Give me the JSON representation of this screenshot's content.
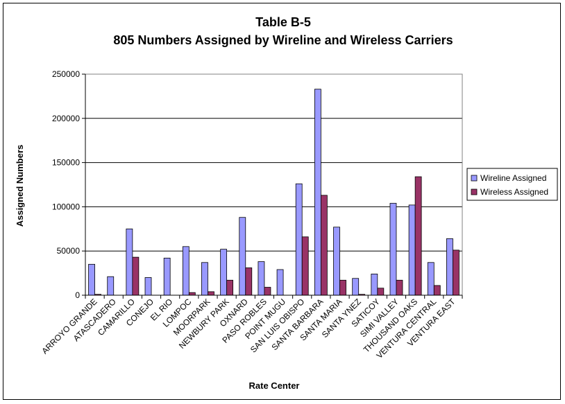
{
  "chart_data": {
    "type": "bar",
    "title": [
      "Table B-5",
      "805 Numbers Assigned by Wireline and Wireless Carriers"
    ],
    "xlabel": "Rate Center",
    "ylabel": "Assigned Numbers",
    "ylim": [
      0,
      250000
    ],
    "yticks": [
      0,
      50000,
      100000,
      150000,
      200000,
      250000
    ],
    "ytick_labels": [
      "0",
      "50000",
      "100000",
      "150000",
      "200000",
      "250000"
    ],
    "grid": true,
    "legend_position": "right",
    "categories": [
      "ARROYO GRANDE",
      "ATASCADERO",
      "CAMARILLO",
      "CONEJO",
      "EL RIO",
      "LOMPOC",
      "MOORPARK",
      "NEWBURY PARK",
      "OXNARD",
      "PASO ROBLES",
      "POINT MUGU",
      "SAN LUIS OBISPO",
      "SANTA BARBARA",
      "SANTA MARIA",
      "SANTA YNEZ",
      "SATICOY",
      "SIMI VALLEY",
      "THOUSAND OAKS",
      "VENTURA CENTRAL",
      "VENTURA EAST"
    ],
    "series": [
      {
        "name": "Wireline Assigned",
        "color": "#9999ff",
        "values": [
          35000,
          21000,
          75000,
          20000,
          42000,
          55000,
          37000,
          52000,
          88000,
          38000,
          29000,
          126000,
          233000,
          77000,
          19000,
          24000,
          104000,
          102000,
          37000,
          64000
        ]
      },
      {
        "name": "Wireless Assigned",
        "color": "#993366",
        "values": [
          1000,
          0,
          43000,
          0,
          0,
          3000,
          4000,
          17000,
          31000,
          9000,
          0,
          66000,
          113000,
          17000,
          1000,
          8000,
          17000,
          134000,
          11000,
          51000
        ]
      }
    ]
  }
}
